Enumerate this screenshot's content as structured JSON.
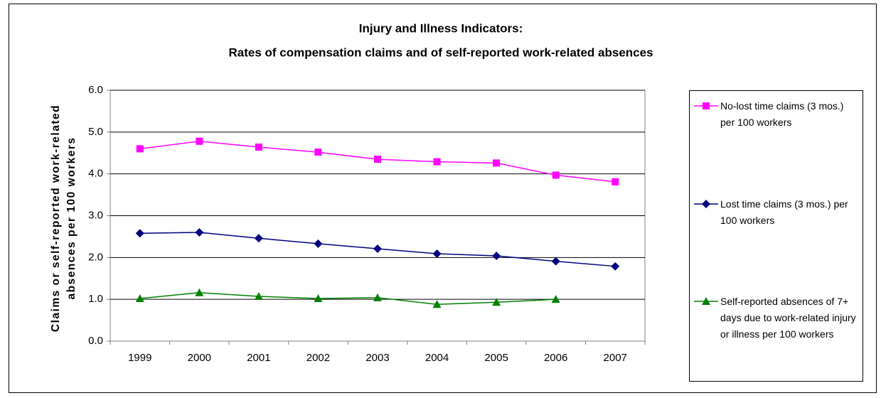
{
  "chart_data": {
    "type": "line",
    "title": "Injury and Illness Indicators:",
    "subtitle": "Rates of compensation claims and of self-reported work-related absences",
    "y_label": "Claims or self-reported work-related absences per 100 workers",
    "categories": [
      "1999",
      "2000",
      "2001",
      "2002",
      "2003",
      "2004",
      "2005",
      "2006",
      "2007"
    ],
    "series": [
      {
        "name": "No-lost time claims (3 mos.) per 100 workers",
        "color": "#ff00ff",
        "marker": "square",
        "values": [
          4.6,
          4.78,
          4.64,
          4.52,
          4.35,
          4.29,
          4.26,
          3.97,
          3.81
        ]
      },
      {
        "name": "Lost time claims (3 mos.) per 100 workers",
        "color": "#000080",
        "marker": "diamond",
        "values": [
          2.58,
          2.6,
          2.46,
          2.33,
          2.21,
          2.09,
          2.04,
          1.91,
          1.79
        ]
      },
      {
        "name": "Self-reported absences of 7+ days due to work-related injury or illness per 100 workers",
        "color": "#008000",
        "marker": "triangle",
        "values": [
          1.02,
          1.16,
          1.07,
          1.02,
          1.04,
          0.88,
          0.93,
          1.0,
          null
        ]
      }
    ],
    "ylim": [
      0,
      6
    ],
    "yticks": [
      {
        "value": 0,
        "label": "0.0"
      },
      {
        "value": 1,
        "label": "1.0"
      },
      {
        "value": 2,
        "label": "2.0"
      },
      {
        "value": 3,
        "label": "3.0"
      },
      {
        "value": 4,
        "label": "4.0"
      },
      {
        "value": 5,
        "label": "5.0"
      },
      {
        "value": 6,
        "label": "6.0"
      }
    ],
    "grid": true,
    "legend": "right"
  }
}
